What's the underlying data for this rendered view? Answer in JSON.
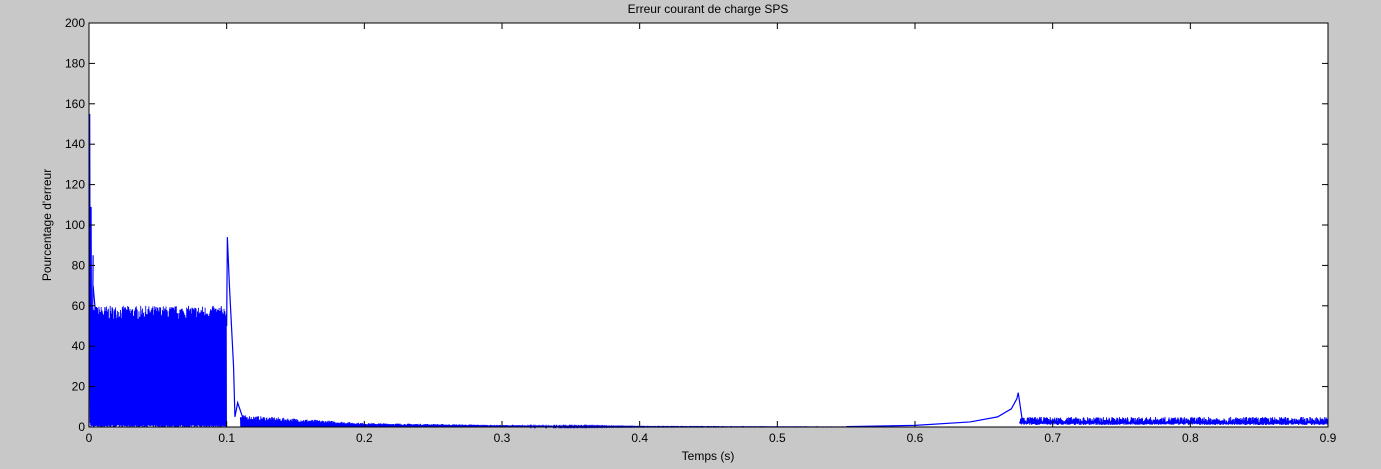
{
  "chart_data": {
    "type": "line",
    "title": "Erreur courant de charge SPS",
    "xlabel": "Temps (s)",
    "ylabel": "Pourcentage d'erreur",
    "xlim": [
      0,
      0.9
    ],
    "ylim": [
      0,
      200
    ],
    "grid": false,
    "xticks": [
      0,
      0.1,
      0.2,
      0.3,
      0.4,
      0.5,
      0.6,
      0.7,
      0.8,
      0.9
    ],
    "xtick_labels": [
      "0",
      "0.1",
      "0.2",
      "0.3",
      "0.4",
      "0.5",
      "0.6",
      "0.7",
      "0.8",
      "0.9"
    ],
    "yticks": [
      0,
      20,
      40,
      60,
      80,
      100,
      120,
      140,
      160,
      180,
      200
    ],
    "ytick_labels": [
      "0",
      "20",
      "40",
      "60",
      "80",
      "100",
      "120",
      "140",
      "160",
      "180",
      "200"
    ],
    "line_color": "#0000ff",
    "series": [
      {
        "segments": [
          {
            "kind": "line",
            "x": [
              0,
              0.0005,
              0.001,
              0.0015,
              0.002,
              0.003
            ],
            "y": [
              0,
              155,
              2,
              109,
              3,
              85
            ]
          },
          {
            "kind": "line",
            "x": [
              0.003,
              0.004,
              0.005,
              0.006,
              0.0065,
              0.007
            ],
            "y": [
              70,
              62,
              55,
              50,
              41,
              45
            ]
          },
          {
            "kind": "oscillation",
            "x_start": 0.001,
            "x_end": 0.1,
            "y_low": 0,
            "y_high": 55,
            "y_high_max": 60
          },
          {
            "kind": "line",
            "x": [
              0.1,
              0.1005,
              0.102,
              0.105,
              0.106,
              0.108,
              0.112
            ],
            "y": [
              50,
              94,
              70,
              30,
              5,
              12,
              4
            ]
          },
          {
            "kind": "decay_band",
            "x": [
              0.11,
              0.2,
              0.3,
              0.4,
              0.55
            ],
            "y_high": [
              6,
              2,
              1,
              0.3,
              0.1
            ],
            "y_low": [
              0,
              0,
              0,
              0,
              0
            ]
          },
          {
            "kind": "line",
            "x": [
              0.55,
              0.6,
              0.64,
              0.66,
              0.67,
              0.674,
              0.675,
              0.678
            ],
            "y": [
              0.2,
              0.8,
              2.5,
              5,
              9,
              14,
              17,
              3
            ]
          },
          {
            "kind": "oscillation",
            "x_start": 0.676,
            "x_end": 0.9,
            "y_low": 1,
            "y_high": 4,
            "y_high_max": 5
          }
        ]
      }
    ]
  }
}
